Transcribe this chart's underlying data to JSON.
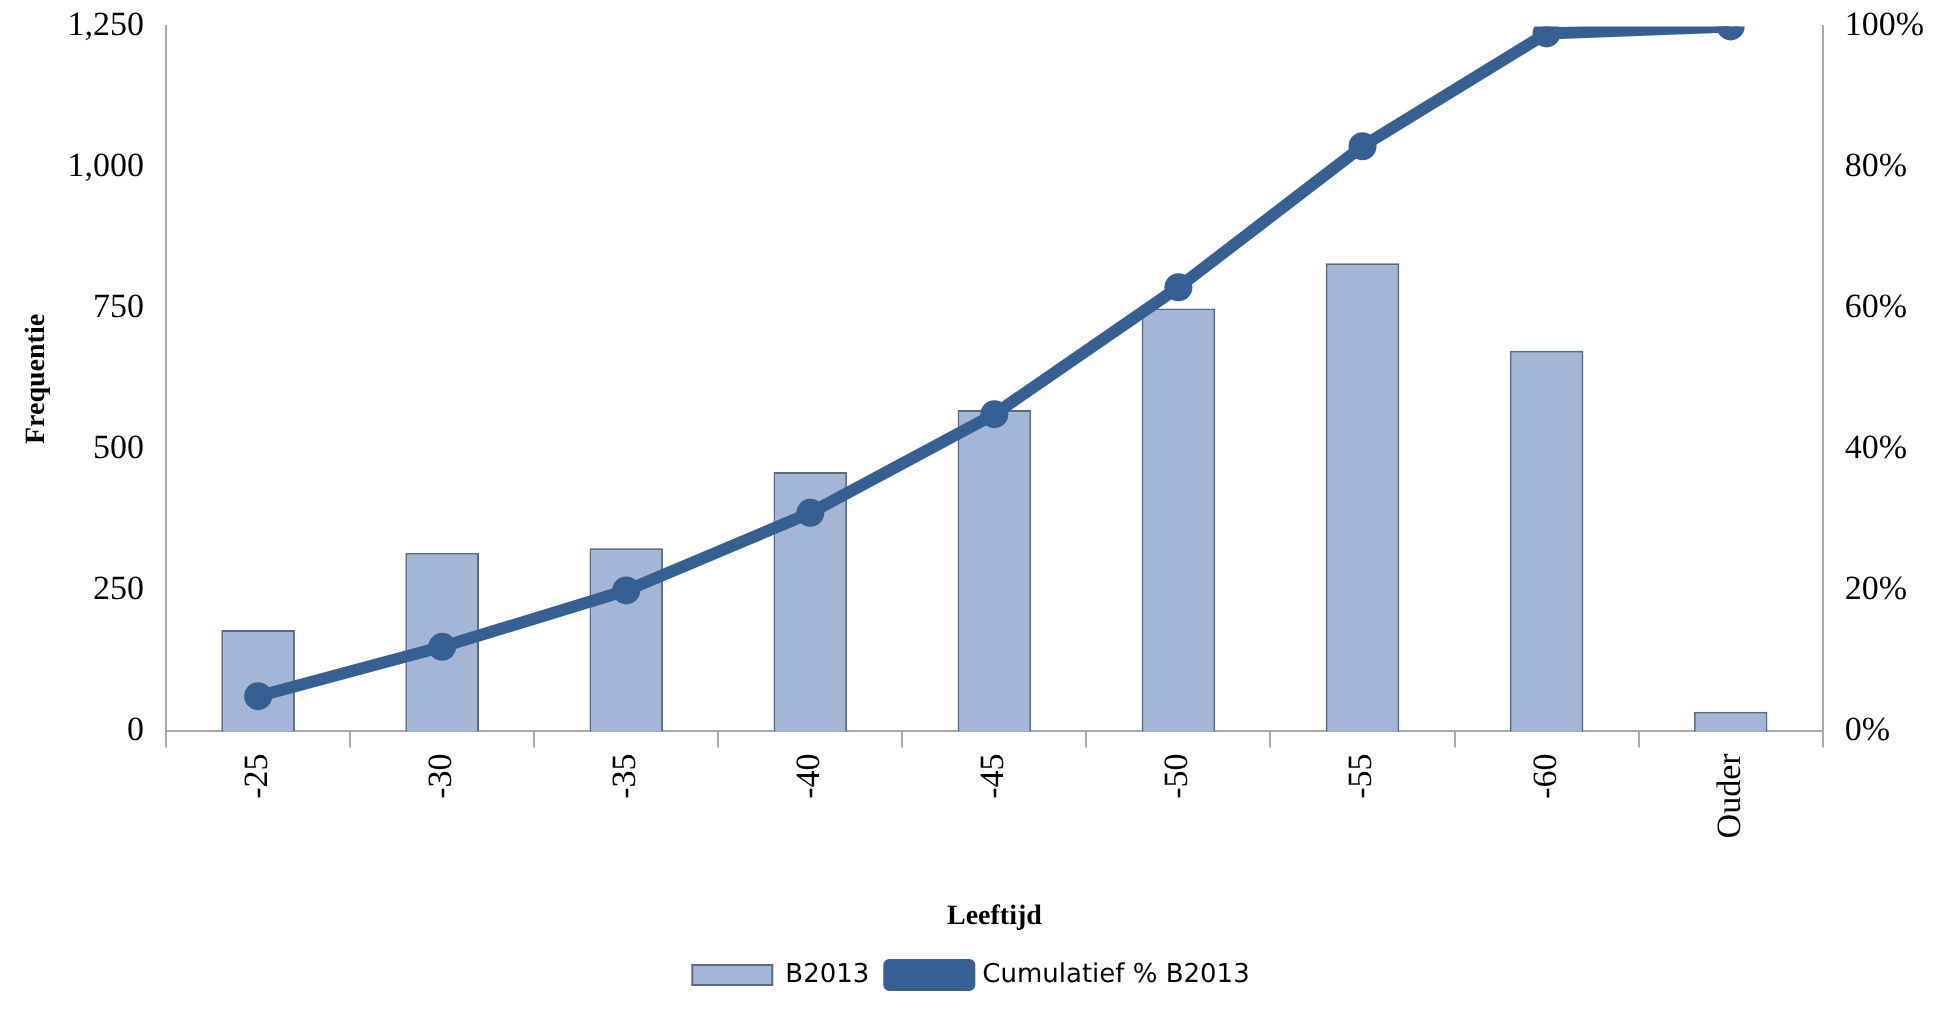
{
  "chart_data": {
    "type": "bar",
    "xlabel": "Leeftijd",
    "ylabel": "Frequentie",
    "categories": [
      "-25",
      "-30",
      "-35",
      "-40",
      "-45",
      "-50",
      "-55",
      "-60",
      "Ouder"
    ],
    "series": [
      {
        "name": "B2013",
        "color": "#a3b6d6",
        "values": [
          180,
          317,
          325,
          460,
          570,
          750,
          830,
          675,
          35
        ]
      },
      {
        "name": "Cumulatief % B2013",
        "type": "line",
        "axis": "y2",
        "color": "#376092",
        "marker": "circle",
        "values": [
          5,
          12,
          20,
          31,
          45,
          63,
          83,
          99,
          100
        ]
      }
    ],
    "ylim": [
      0,
      1250
    ],
    "yticks": [
      {
        "value": 0,
        "label": "0"
      },
      {
        "value": 250,
        "label": "250"
      },
      {
        "value": 500,
        "label": "500"
      },
      {
        "value": 750,
        "label": "750"
      },
      {
        "value": 1000,
        "label": "1,000"
      },
      {
        "value": 1250,
        "label": "1,250"
      }
    ],
    "y2lim": [
      0,
      100
    ],
    "y2ticks": [
      {
        "value": 0,
        "label": "0%"
      },
      {
        "value": 20,
        "label": "20%"
      },
      {
        "value": 40,
        "label": "40%"
      },
      {
        "value": 60,
        "label": "60%"
      },
      {
        "value": 80,
        "label": "80%"
      },
      {
        "value": 100,
        "label": "100%"
      }
    ],
    "grid": false,
    "legend": "bottom"
  }
}
